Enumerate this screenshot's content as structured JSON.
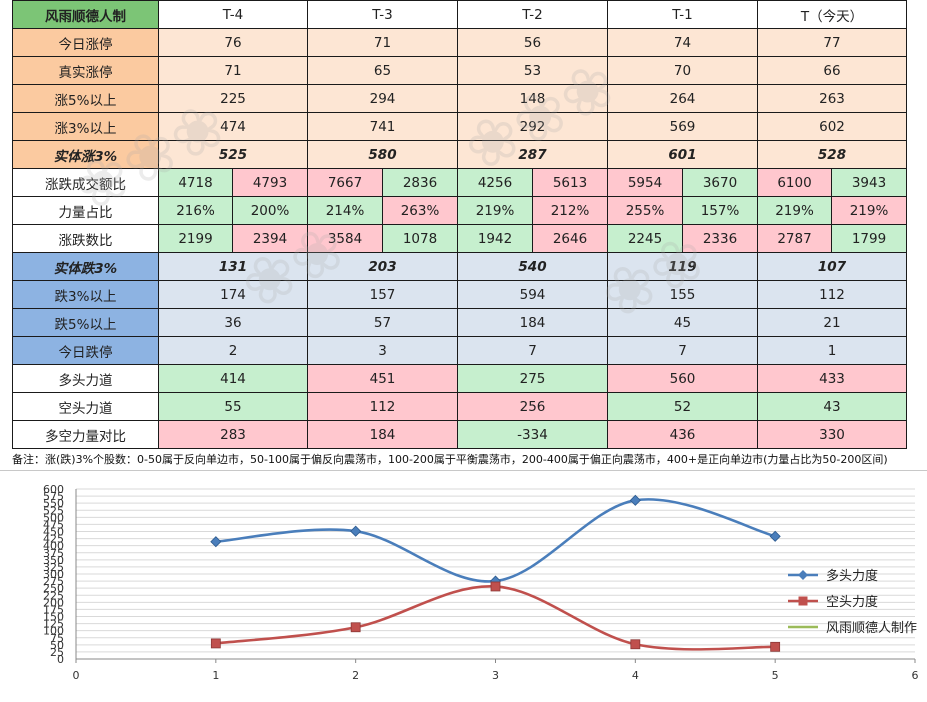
{
  "table": {
    "corner": "风雨顺德人制",
    "headers": [
      "T-4",
      "T-3",
      "T-2",
      "T-1",
      "T（今天）"
    ],
    "rows": [
      {
        "label": "今日涨停",
        "values": [
          "76",
          "71",
          "56",
          "74",
          "77"
        ]
      },
      {
        "label": "真实涨停",
        "values": [
          "71",
          "65",
          "53",
          "70",
          "66"
        ]
      },
      {
        "label": "涨5%以上",
        "values": [
          "225",
          "294",
          "148",
          "264",
          "263"
        ]
      },
      {
        "label": "涨3%以上",
        "values": [
          "474",
          "741",
          "292",
          "569",
          "602"
        ]
      },
      {
        "label": "实体涨3%",
        "values": [
          "525",
          "580",
          "287",
          "601",
          "528"
        ]
      },
      {
        "label": "涨跌成交额比",
        "pairs": [
          [
            "4718",
            "4793"
          ],
          [
            "7667",
            "2836"
          ],
          [
            "4256",
            "5613"
          ],
          [
            "5954",
            "3670"
          ],
          [
            "6100",
            "3943"
          ]
        ]
      },
      {
        "label": "力量占比",
        "pairs": [
          [
            "216%",
            "200%"
          ],
          [
            "214%",
            "263%"
          ],
          [
            "219%",
            "212%"
          ],
          [
            "255%",
            "157%"
          ],
          [
            "219%",
            "219%"
          ]
        ]
      },
      {
        "label": "涨跌数比",
        "pairs": [
          [
            "2199",
            "2394"
          ],
          [
            "3584",
            "1078"
          ],
          [
            "1942",
            "2646"
          ],
          [
            "2245",
            "2336"
          ],
          [
            "2787",
            "1799"
          ]
        ]
      },
      {
        "label": "实体跌3%",
        "values": [
          "131",
          "203",
          "540",
          "119",
          "107"
        ]
      },
      {
        "label": "跌3%以上",
        "values": [
          "174",
          "157",
          "594",
          "155",
          "112"
        ]
      },
      {
        "label": "跌5%以上",
        "values": [
          "36",
          "57",
          "184",
          "45",
          "21"
        ]
      },
      {
        "label": "今日跌停",
        "values": [
          "2",
          "3",
          "7",
          "7",
          "1"
        ]
      },
      {
        "label": "多头力道",
        "values": [
          "414",
          "451",
          "275",
          "560",
          "433"
        ]
      },
      {
        "label": "空头力道",
        "values": [
          "55",
          "112",
          "256",
          "52",
          "43"
        ]
      },
      {
        "label": "多空力量对比",
        "values": [
          "283",
          "184",
          "-334",
          "436",
          "330"
        ]
      }
    ]
  },
  "note": "备注：涨(跌)3%个股数：0-50属于反向单边市，50-100属于偏反向震荡市，100-200属于平衡震荡市，200-400属于偏正向震荡市，400+是正向单边市(力量占比为50-200区间)",
  "colors": {
    "green_fill": "#c6efce",
    "red_fill": "#ffc7ce",
    "orange_label": "#fbcaa0",
    "blue_label": "#8db3e2",
    "series_blue": "#4a7ebb",
    "series_red": "#c0504d",
    "series_green": "#9bbb59"
  },
  "chart_data": {
    "type": "scatter",
    "title": "",
    "xlabel": "",
    "ylabel": "",
    "xlim": [
      0,
      6
    ],
    "ylim": [
      0,
      600
    ],
    "xticks": [
      0,
      1,
      2,
      3,
      4,
      5,
      6
    ],
    "yticks": [
      0,
      25,
      50,
      75,
      100,
      125,
      150,
      175,
      200,
      225,
      250,
      275,
      300,
      325,
      350,
      375,
      400,
      425,
      450,
      475,
      500,
      525,
      550,
      575,
      600
    ],
    "grid": true,
    "smooth": true,
    "legend": "right",
    "series": [
      {
        "name": "多头力度",
        "x": [
          1,
          2,
          3,
          4,
          5
        ],
        "y": [
          414,
          451,
          275,
          560,
          433
        ],
        "color": "#4a7ebb",
        "marker": "diamond"
      },
      {
        "name": "空头力度",
        "x": [
          1,
          2,
          3,
          4,
          5
        ],
        "y": [
          55,
          112,
          256,
          52,
          43
        ],
        "color": "#c0504d",
        "marker": "square"
      },
      {
        "name": "风雨顺德人制作",
        "x": [],
        "y": [],
        "color": "#9bbb59",
        "marker": "none"
      }
    ]
  }
}
